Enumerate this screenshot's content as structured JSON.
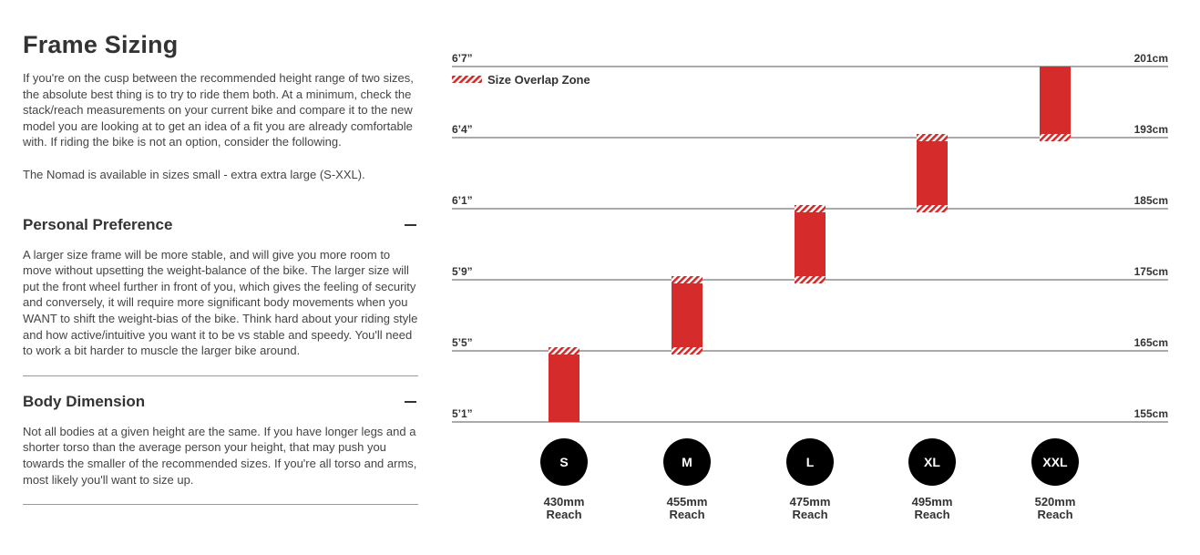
{
  "article": {
    "title": "Frame Sizing",
    "intro": [
      "If you're on the cusp between the recommended height range of two sizes, the absolute best thing is to try to ride them both. At a minimum, check the stack/reach measurements on your current bike and compare it to the new model you are looking at to get an idea of a fit you are already comfortable with. If riding the bike is not an option, consider the following.",
      "The Nomad is available in sizes small - extra extra large (S-XXL)."
    ],
    "sections": [
      {
        "heading": "Personal Preference",
        "body": "A larger size frame will be more stable, and will give you more room to move without upsetting the weight-balance of the bike. The larger size will put the front wheel further in front of you, which gives the feeling of security and conversely, it will require more significant body movements when you WANT to shift the weight-bias of the bike. Think hard about your riding style and how active/intuitive you want it to be vs stable and speedy. You'll need to work a bit harder to muscle the larger bike around."
      },
      {
        "heading": "Body Dimension",
        "body": "Not all bodies at a given height are the same. If you have longer legs and a shorter torso than the average person your height, that may push you towards the smaller of the recommended sizes. If you're all torso and arms, most likely you'll want to size up."
      }
    ]
  },
  "chart_data": {
    "type": "range-bar",
    "legend": "Size Overlap Zone",
    "categories": [
      "S",
      "M",
      "L",
      "XL",
      "XXL"
    ],
    "reach_labels": [
      "430mm",
      "455mm",
      "475mm",
      "495mm",
      "520mm"
    ],
    "reach_caption": "Reach",
    "low": [
      155,
      165,
      175,
      185,
      193
    ],
    "high": [
      165,
      175,
      185,
      193,
      201
    ],
    "color": "#d62b2b",
    "ylim": [
      155,
      201
    ],
    "yticks": [
      {
        "value": 155,
        "label": "155cm"
      },
      {
        "value": 165,
        "label": "165cm"
      },
      {
        "value": 175,
        "label": "175cm"
      },
      {
        "value": 185,
        "label": "185cm"
      },
      {
        "value": 193,
        "label": "193cm"
      },
      {
        "value": 201,
        "label": "201cm"
      }
    ],
    "yticks_left_labels": [
      "5’1”",
      "5’5”",
      "5’9”",
      "6’1”",
      "6’4”",
      "6’7”"
    ],
    "grid": true
  }
}
